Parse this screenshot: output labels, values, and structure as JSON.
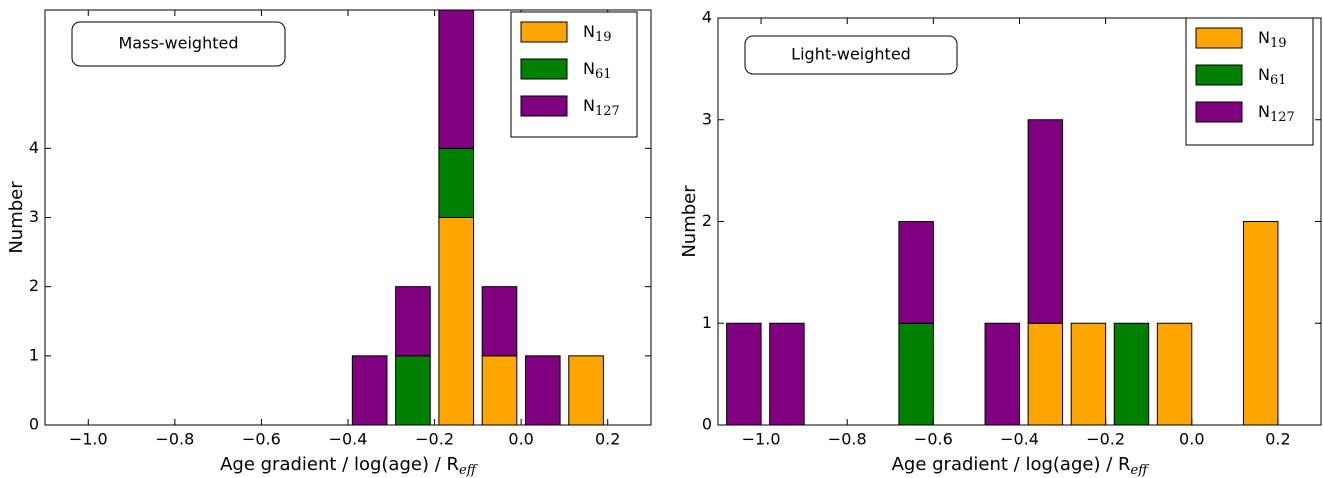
{
  "chart_data": [
    {
      "type": "histogram",
      "annotation": "Mass-weighted",
      "ylabel": "Number",
      "xlabel": "Age gradient / log(age) / R",
      "xlabel_sub": "eff",
      "bins": [
        -0.4,
        -0.3,
        -0.2,
        -0.1,
        0.0,
        0.1,
        0.2
      ],
      "series": [
        {
          "name": "N",
          "sub": "19",
          "color": "#ffa500",
          "values": [
            0,
            0,
            3,
            1,
            0,
            1
          ]
        },
        {
          "name": "N",
          "sub": "61",
          "color": "#008000",
          "values": [
            0,
            1,
            1,
            0,
            0,
            0
          ]
        },
        {
          "name": "N",
          "sub": "127",
          "color": "#800080",
          "values": [
            1,
            1,
            2,
            1,
            1,
            0
          ]
        }
      ],
      "stacked": true,
      "rwidth": 0.8,
      "xlim": [
        -1.1,
        0.3
      ],
      "ylim": [
        0,
        6
      ],
      "xticks": [
        {
          "value": -1.0,
          "label": "−1.0"
        },
        {
          "value": -0.8,
          "label": "−0.8"
        },
        {
          "value": -0.6,
          "label": "−0.6"
        },
        {
          "value": -0.4,
          "label": "−0.4"
        },
        {
          "value": -0.2,
          "label": "−0.2"
        },
        {
          "value": 0,
          "label": "0.0"
        },
        0.2
      ],
      "yticks": [
        0,
        1,
        2,
        3,
        4
      ],
      "legend": "upper right"
    },
    {
      "type": "histogram",
      "annotation": "Light-weighted",
      "ylabel": "Number",
      "xlabel": "Age gradient / log(age) / R",
      "xlabel_sub": "eff",
      "bins": [
        -1.09,
        -0.99,
        -0.89,
        -0.79,
        -0.69,
        -0.59,
        -0.49,
        -0.39,
        -0.29,
        -0.19,
        -0.09,
        0.01,
        0.11,
        0.21
      ],
      "series": [
        {
          "name": "N",
          "sub": "19",
          "color": "#ffa500",
          "values": [
            0,
            0,
            0,
            0,
            0,
            0,
            0,
            1,
            1,
            0,
            1,
            0,
            2
          ]
        },
        {
          "name": "N",
          "sub": "61",
          "color": "#008000",
          "values": [
            0,
            0,
            0,
            0,
            1,
            0,
            0,
            0,
            0,
            1,
            0,
            0,
            0
          ]
        },
        {
          "name": "N",
          "sub": "127",
          "color": "#800080",
          "values": [
            1,
            1,
            0,
            0,
            1,
            0,
            1,
            2,
            0,
            0,
            0,
            0,
            0
          ]
        }
      ],
      "stacked": true,
      "rwidth": 0.8,
      "xlim": [
        -1.1,
        0.3
      ],
      "ylim": [
        0,
        4
      ],
      "xticks": [
        {
          "value": -1.0,
          "label": "−1.0"
        },
        {
          "value": -0.8,
          "label": "−0.8"
        },
        {
          "value": -0.6,
          "label": "−0.6"
        },
        {
          "value": -0.4,
          "label": "−0.4"
        },
        {
          "value": -0.2,
          "label": "−0.2"
        },
        {
          "value": 0,
          "label": "0.0"
        },
        0.2
      ],
      "yticks": [
        0,
        1,
        2,
        3,
        4
      ],
      "legend": "upper right"
    }
  ]
}
